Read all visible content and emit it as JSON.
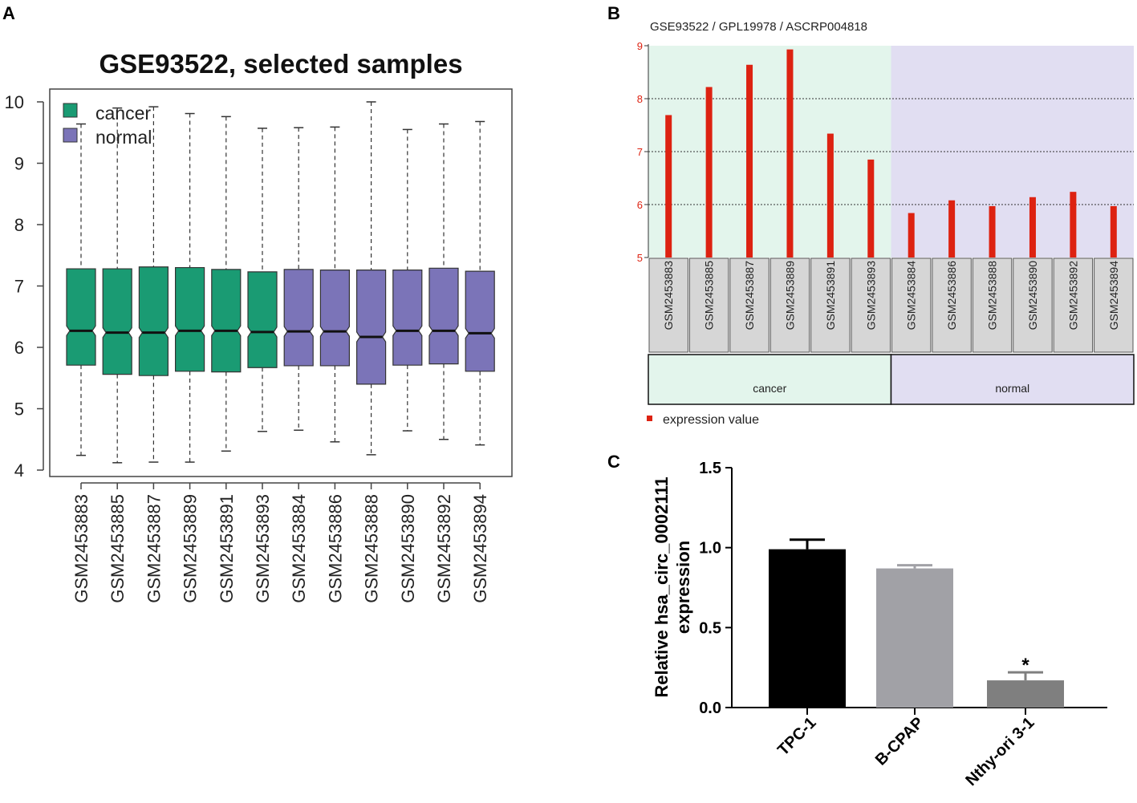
{
  "panels": {
    "a": "A",
    "b": "B",
    "c": "C"
  },
  "chart_data": [
    {
      "type": "boxplot",
      "panel": "A",
      "title": "GSE93522, selected samples",
      "ylim": [
        4,
        10
      ],
      "yticks": [
        "4",
        "5",
        "6",
        "7",
        "8",
        "9",
        "10"
      ],
      "legend": [
        {
          "label": "cancer",
          "color": "#1a9b73"
        },
        {
          "label": "normal",
          "color": "#7b74b8"
        }
      ],
      "samples": [
        {
          "name": "GSM2453883",
          "group": "cancer",
          "min": 4.24,
          "q1": 5.71,
          "median": 6.27,
          "q3": 7.28,
          "max": 9.64
        },
        {
          "name": "GSM2453885",
          "group": "cancer",
          "min": 4.12,
          "q1": 5.56,
          "median": 6.24,
          "q3": 7.28,
          "max": 9.9
        },
        {
          "name": "GSM2453887",
          "group": "cancer",
          "min": 4.13,
          "q1": 5.54,
          "median": 6.24,
          "q3": 7.31,
          "max": 9.92
        },
        {
          "name": "GSM2453889",
          "group": "cancer",
          "min": 4.13,
          "q1": 5.61,
          "median": 6.27,
          "q3": 7.3,
          "max": 9.81
        },
        {
          "name": "GSM2453891",
          "group": "cancer",
          "min": 4.31,
          "q1": 5.6,
          "median": 6.27,
          "q3": 7.27,
          "max": 9.76
        },
        {
          "name": "GSM2453893",
          "group": "cancer",
          "min": 4.63,
          "q1": 5.67,
          "median": 6.25,
          "q3": 7.23,
          "max": 9.57
        },
        {
          "name": "GSM2453884",
          "group": "normal",
          "min": 4.65,
          "q1": 5.7,
          "median": 6.26,
          "q3": 7.27,
          "max": 9.58
        },
        {
          "name": "GSM2453886",
          "group": "normal",
          "min": 4.46,
          "q1": 5.7,
          "median": 6.26,
          "q3": 7.26,
          "max": 9.59
        },
        {
          "name": "GSM2453888",
          "group": "normal",
          "min": 4.25,
          "q1": 5.4,
          "median": 6.17,
          "q3": 7.26,
          "max": 10.0
        },
        {
          "name": "GSM2453890",
          "group": "normal",
          "min": 4.64,
          "q1": 5.71,
          "median": 6.27,
          "q3": 7.26,
          "max": 9.55
        },
        {
          "name": "GSM2453892",
          "group": "normal",
          "min": 4.5,
          "q1": 5.73,
          "median": 6.27,
          "q3": 7.29,
          "max": 9.64
        },
        {
          "name": "GSM2453894",
          "group": "normal",
          "min": 4.41,
          "q1": 5.61,
          "median": 6.23,
          "q3": 7.24,
          "max": 9.68
        }
      ]
    },
    {
      "type": "bar",
      "panel": "B",
      "title": "GSE93522 / GPL19978 / ASCRP004818",
      "ylim": [
        5,
        9
      ],
      "yticks": [
        "5",
        "6",
        "7",
        "8",
        "9"
      ],
      "categories": [
        "GSM2453883",
        "GSM2453885",
        "GSM2453887",
        "GSM2453889",
        "GSM2453891",
        "GSM2453893",
        "GSM2453884",
        "GSM2453886",
        "GSM2453888",
        "GSM2453890",
        "GSM2453892",
        "GSM2453894"
      ],
      "values": [
        7.69,
        8.22,
        8.64,
        8.93,
        7.34,
        6.85,
        5.84,
        6.08,
        5.97,
        6.14,
        6.24,
        5.97
      ],
      "groups": [
        {
          "label": "cancer",
          "count": 6,
          "color": "#e3f5ec"
        },
        {
          "label": "normal",
          "count": 6,
          "color": "#e1def2"
        }
      ],
      "bar_color": "#dd2211",
      "legend": "expression value"
    },
    {
      "type": "bar",
      "panel": "C",
      "ylabel_line1": "Relative hsa_circ_0002111",
      "ylabel_line2": "expression",
      "ylim": [
        0,
        1.5
      ],
      "yticks": [
        "0.0",
        "0.5",
        "1.0",
        "1.5"
      ],
      "categories": [
        "TPC-1",
        "B-CPAP",
        "Nthy-ori 3-1"
      ],
      "values": [
        0.99,
        0.87,
        0.17
      ],
      "errors": [
        0.06,
        0.02,
        0.05
      ],
      "colors": [
        "#000000",
        "#a1a1a6",
        "#7f7f7f"
      ],
      "annotations": [
        "",
        "",
        "*"
      ]
    }
  ]
}
